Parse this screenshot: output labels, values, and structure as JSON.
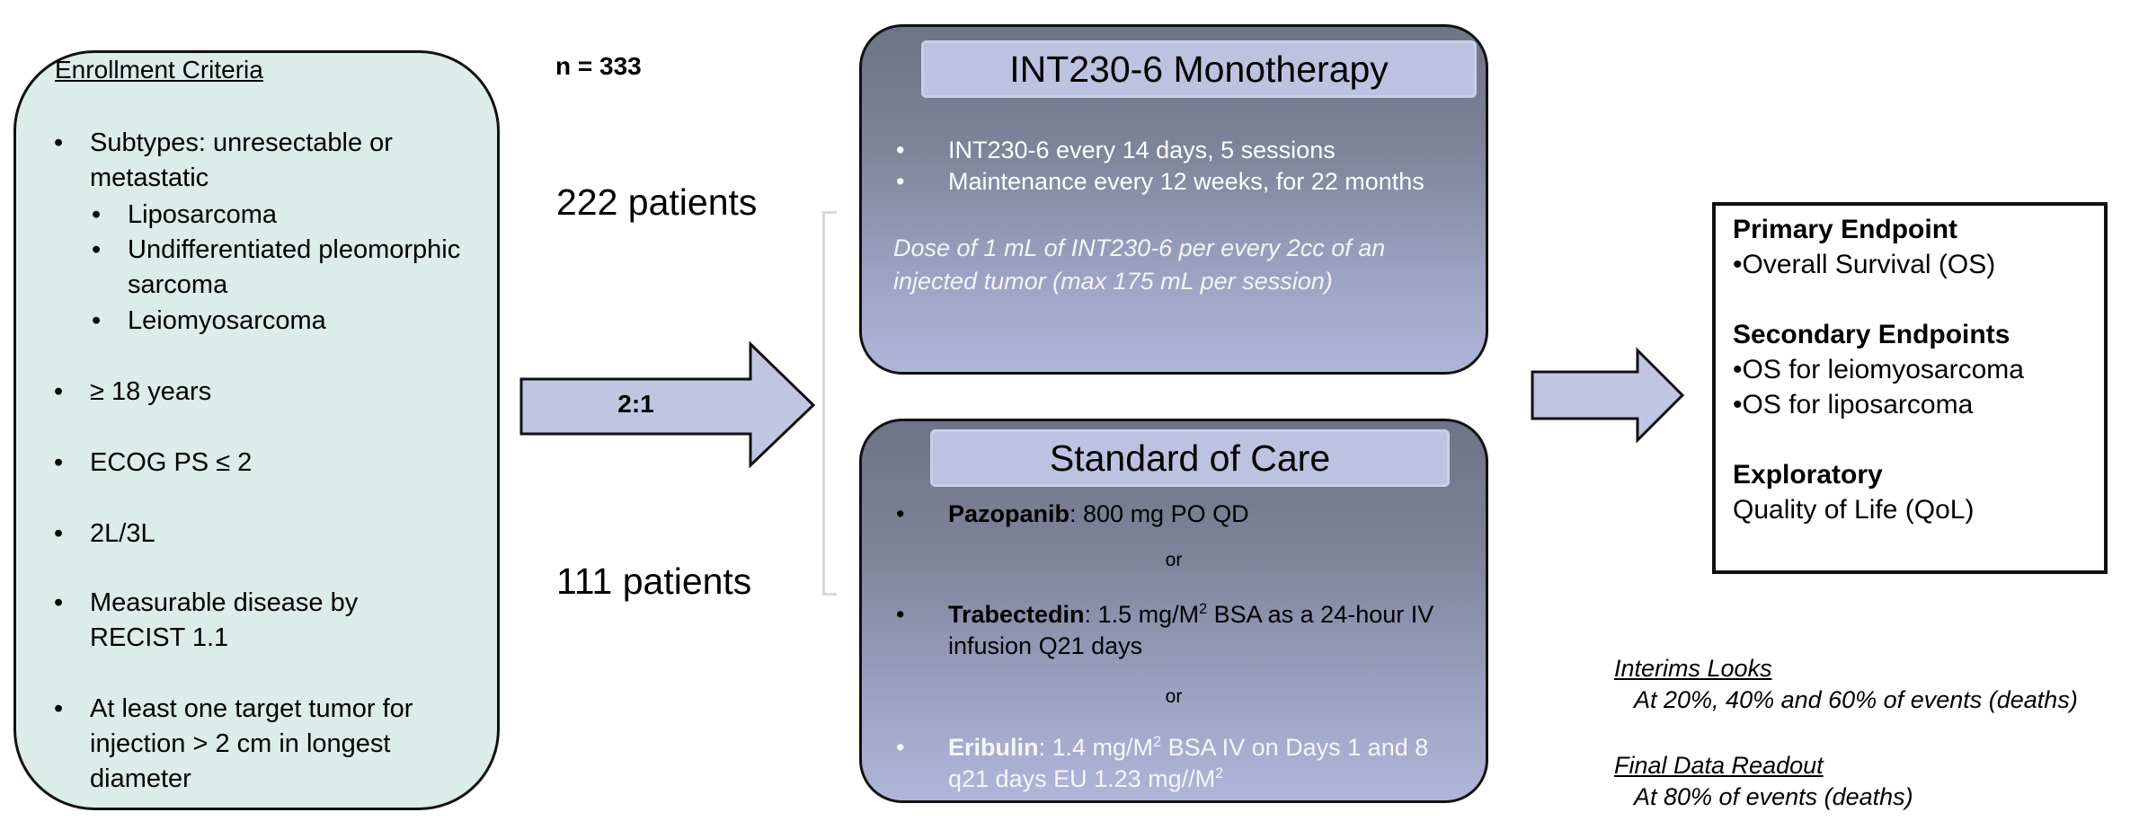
{
  "enrollment": {
    "title": "Enrollment Criteria",
    "subtypes_label": "Subtypes: unresectable or metastatic",
    "subtypes": [
      "Liposarcoma",
      "Undifferentiated pleomorphic sarcoma",
      "Leiomyosarcoma"
    ],
    "criteria": [
      "≥ 18 years",
      "ECOG PS ≤ 2",
      "2L/3L",
      "Measurable disease by RECIST 1.1",
      "At least one target tumor for injection > 2 cm in longest diameter"
    ]
  },
  "n_label": "n = 333",
  "arm1_count": "222 patients",
  "arm2_count": "111 patients",
  "randomization_ratio": "2:1",
  "monotherapy": {
    "title": "INT230-6 Monotherapy",
    "bullets": [
      "INT230-6 every 14 days, 5 sessions",
      "Maintenance every 12 weeks, for 22 months"
    ],
    "note": "Dose of 1 mL of INT230-6 per every 2cc of an injected tumor (max 175 mL per session)"
  },
  "soc": {
    "title": "Standard of Care",
    "or": "or",
    "drugs": [
      {
        "name": "Pazopanib",
        "pre": ": 800 mg PO QD",
        "sup": "",
        "post": ""
      },
      {
        "name": "Trabectedin",
        "pre": ": 1.5 mg/M",
        "sup": "2",
        "post": " BSA as a 24-hour IV infusion Q21 days"
      },
      {
        "name": "Eribulin",
        "pre": ": 1.4 mg/M",
        "sup": "2",
        "post": " BSA IV on Days 1 and 8 q21 days EU 1.23 mg//M",
        "sup2": "2"
      }
    ]
  },
  "endpoints": {
    "primary_title": "Primary Endpoint",
    "primary": "•Overall Survival (OS)",
    "secondary_title": "Secondary Endpoints",
    "secondary": [
      "•OS for leiomyosarcoma",
      "•OS for liposarcoma"
    ],
    "exploratory_title": "Exploratory",
    "exploratory": "Quality of Life (QoL)"
  },
  "interims": {
    "title": "Interims Looks",
    "text": "At 20%, 40% and 60% of events (deaths)"
  },
  "final": {
    "title": "Final Data Readout",
    "text": "At 80% of events (deaths)"
  },
  "colors": {
    "enrollment_fill": "#dbece9",
    "arrow_fill": "#c0c6e2",
    "panel_dark": "#6d7487",
    "panel_light": "#afb6d8",
    "panel_title": "#bcc3e1"
  }
}
